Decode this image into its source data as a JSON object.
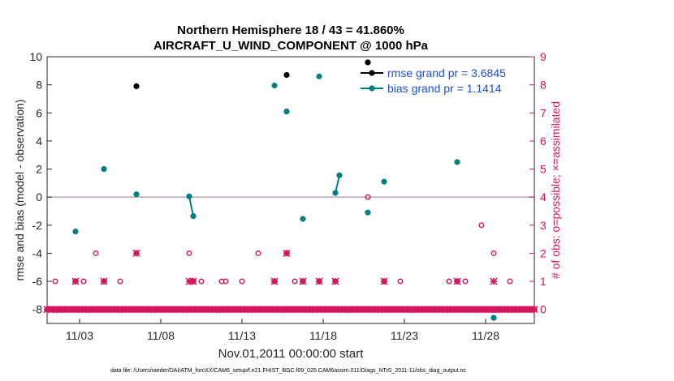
{
  "chart_data": {
    "type": "line",
    "title": [
      "Northern Hemisphere 18 / 43 = 41.860%",
      "AIRCRAFT_U_WIND_COMPONENT @ 1000 hPa"
    ],
    "xlabel": "Nov.01,2011 00:00:00 start",
    "ylabel": "rmse and bias (model - observation)",
    "y2label": "# of obs: o=possible; ×=assimilated",
    "xlim": [
      1.0,
      31.0
    ],
    "ylim": [
      -9,
      10
    ],
    "y2lim": [
      -0.5,
      9
    ],
    "x_ticks": [
      3,
      8,
      13,
      18,
      23,
      28
    ],
    "x_tick_labels": [
      "11/03",
      "11/08",
      "11/13",
      "11/18",
      "11/23",
      "11/28"
    ],
    "y_ticks": [
      -8,
      -6,
      -4,
      -2,
      0,
      2,
      4,
      6,
      8,
      10
    ],
    "y_tick_labels": [
      "-8",
      "-6",
      "-4",
      "-2",
      "0",
      "2",
      "4",
      "6",
      "8",
      "10"
    ],
    "y2_ticks": [
      0,
      1,
      2,
      3,
      4,
      5,
      6,
      7,
      8,
      9
    ],
    "y2_tick_labels": [
      "0",
      "1",
      "2",
      "3",
      "4",
      "5",
      "6",
      "7",
      "8",
      "9"
    ],
    "zero_line": 0,
    "series": [
      {
        "name": "rmse grand pr = 3.6845",
        "color": "#000000",
        "axis": "left",
        "points": [
          [
            6.5,
            7.9
          ],
          [
            15.75,
            8.7
          ],
          [
            20.75,
            9.6
          ]
        ]
      },
      {
        "name": "bias grand pr = 1.1414",
        "color": "#008080",
        "axis": "left",
        "points": [
          [
            2.75,
            -2.45
          ],
          [
            4.5,
            2.0
          ],
          [
            6.5,
            0.2
          ],
          [
            9.75,
            0.05
          ],
          [
            10.0,
            -1.35
          ],
          [
            15.0,
            7.95
          ],
          [
            15.75,
            6.1
          ],
          [
            16.75,
            -1.55
          ],
          [
            17.75,
            8.6
          ],
          [
            18.75,
            0.3
          ],
          [
            19.0,
            1.55
          ],
          [
            20.75,
            -1.1
          ],
          [
            21.75,
            1.1
          ],
          [
            26.25,
            2.5
          ],
          [
            28.5,
            -8.6
          ]
        ],
        "segments": [
          [
            [
              9.75,
              0.05
            ],
            [
              10.0,
              -1.35
            ]
          ],
          [
            [
              18.75,
              0.3
            ],
            [
              19.0,
              1.55
            ]
          ]
        ]
      },
      {
        "name": "possible",
        "color": "#d6175d",
        "axis": "right",
        "marker": "circle",
        "points": [
          [
            1.5,
            1
          ],
          [
            2.75,
            1
          ],
          [
            3.25,
            1
          ],
          [
            4.0,
            2
          ],
          [
            4.5,
            1
          ],
          [
            5.5,
            1
          ],
          [
            6.5,
            2
          ],
          [
            9.75,
            2
          ],
          [
            10.0,
            1
          ],
          [
            10.5,
            1
          ],
          [
            11.75,
            1
          ],
          [
            12.0,
            1
          ],
          [
            13.0,
            1
          ],
          [
            14.0,
            2
          ],
          [
            15.0,
            1
          ],
          [
            15.75,
            2
          ],
          [
            16.25,
            1
          ],
          [
            16.75,
            1
          ],
          [
            17.75,
            1
          ],
          [
            18.75,
            1
          ],
          [
            20.75,
            4
          ],
          [
            21.75,
            1
          ],
          [
            22.75,
            1
          ],
          [
            25.75,
            1
          ],
          [
            26.25,
            1
          ],
          [
            26.75,
            1
          ],
          [
            27.75,
            3
          ],
          [
            28.5,
            2
          ],
          [
            29.5,
            1
          ]
        ]
      },
      {
        "name": "assimilated",
        "color": "#d6175d",
        "axis": "right",
        "marker": "x",
        "points": [
          [
            2.75,
            1
          ],
          [
            4.5,
            1
          ],
          [
            6.5,
            2
          ],
          [
            9.75,
            1
          ],
          [
            10.0,
            1
          ],
          [
            15.0,
            1
          ],
          [
            15.75,
            2
          ],
          [
            16.75,
            1
          ],
          [
            17.75,
            1
          ],
          [
            18.75,
            1
          ],
          [
            21.75,
            1
          ],
          [
            26.25,
            1
          ],
          [
            28.5,
            1
          ]
        ],
        "zero_line_markers": true
      }
    ],
    "legend": {
      "position": "top-right",
      "entries": [
        "rmse grand pr = 3.6845",
        "bias grand pr = 1.1414"
      ]
    },
    "footnote": "data file: /Users/raeder/DAI/ATM_forcXX/CAM6_setup/f.e21.FHIST_BGC.f09_025.CAM6assim.011/Diags_NTrS_2011-11/obs_diag_output.nc"
  }
}
